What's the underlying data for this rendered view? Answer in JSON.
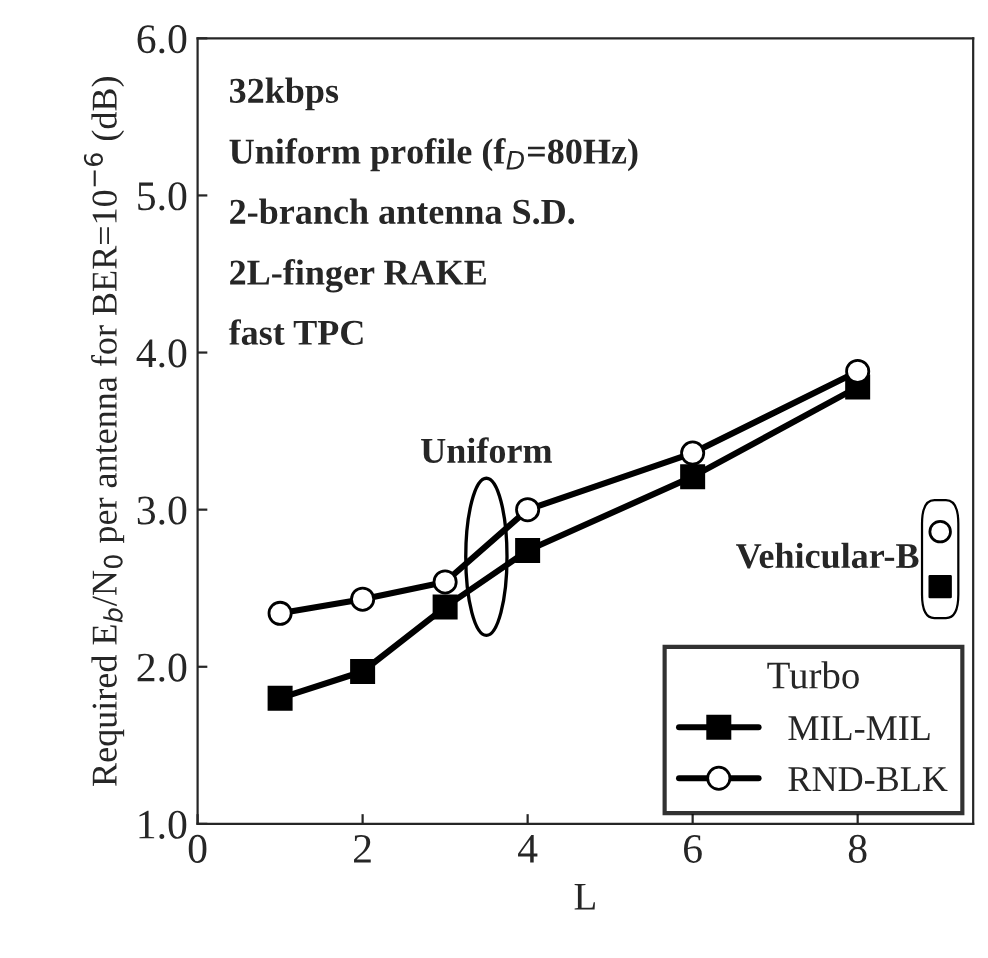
{
  "chart_data": {
    "type": "line",
    "xlabel": "L",
    "ylabel": "Required E$_{b}$/N$_{0}$ per antenna for BER=10$^{−6}$ (dB)",
    "legend_title": "Turbo",
    "xlim": [
      0,
      9.4
    ],
    "xticks": [
      0,
      2,
      4,
      6,
      8
    ],
    "ylim": [
      1.0,
      6.0
    ],
    "yticks": [
      {
        "value": 1.0,
        "label": "1.0"
      },
      {
        "value": 2.0,
        "label": "2.0"
      },
      {
        "value": 3.0,
        "label": "3.0"
      },
      {
        "value": 4.0,
        "label": "4.0"
      },
      {
        "value": 5.0,
        "label": "5.0"
      },
      {
        "value": 6.0,
        "label": "6.0"
      }
    ],
    "grid": false,
    "legend": "bottom right",
    "line_style": "solid",
    "series": [
      {
        "name": "MIL-MIL",
        "color": "#000000",
        "marker": "square",
        "x": [
          1,
          2,
          3,
          4,
          6,
          8
        ],
        "values": [
          1.8,
          1.97,
          2.38,
          2.74,
          3.21,
          3.78
        ]
      },
      {
        "name": "RND-BLK",
        "color": "#000000",
        "marker": "circle",
        "x": [
          1,
          2,
          3,
          4,
          6,
          8
        ],
        "values": [
          2.34,
          2.43,
          2.54,
          3.0,
          3.36,
          3.88
        ]
      },
      {
        "type": "scatter",
        "color": "#000000",
        "marker": "circle",
        "x": [
          9.0
        ],
        "values": [
          2.86
        ]
      },
      {
        "type": "scatter",
        "color": "#000000",
        "marker": "square",
        "x": [
          9.0
        ],
        "values": [
          2.51
        ]
      }
    ],
    "annotations": [
      "32kbps",
      "Uniform profile (f$_{D}$=80Hz)",
      "2-branch antenna S.D.",
      "2L-finger RAKE",
      "fast TPC",
      {
        "text": "Uniform",
        "x": 3.5,
        "y": 2.7
      },
      "Vehicular-B"
    ]
  }
}
